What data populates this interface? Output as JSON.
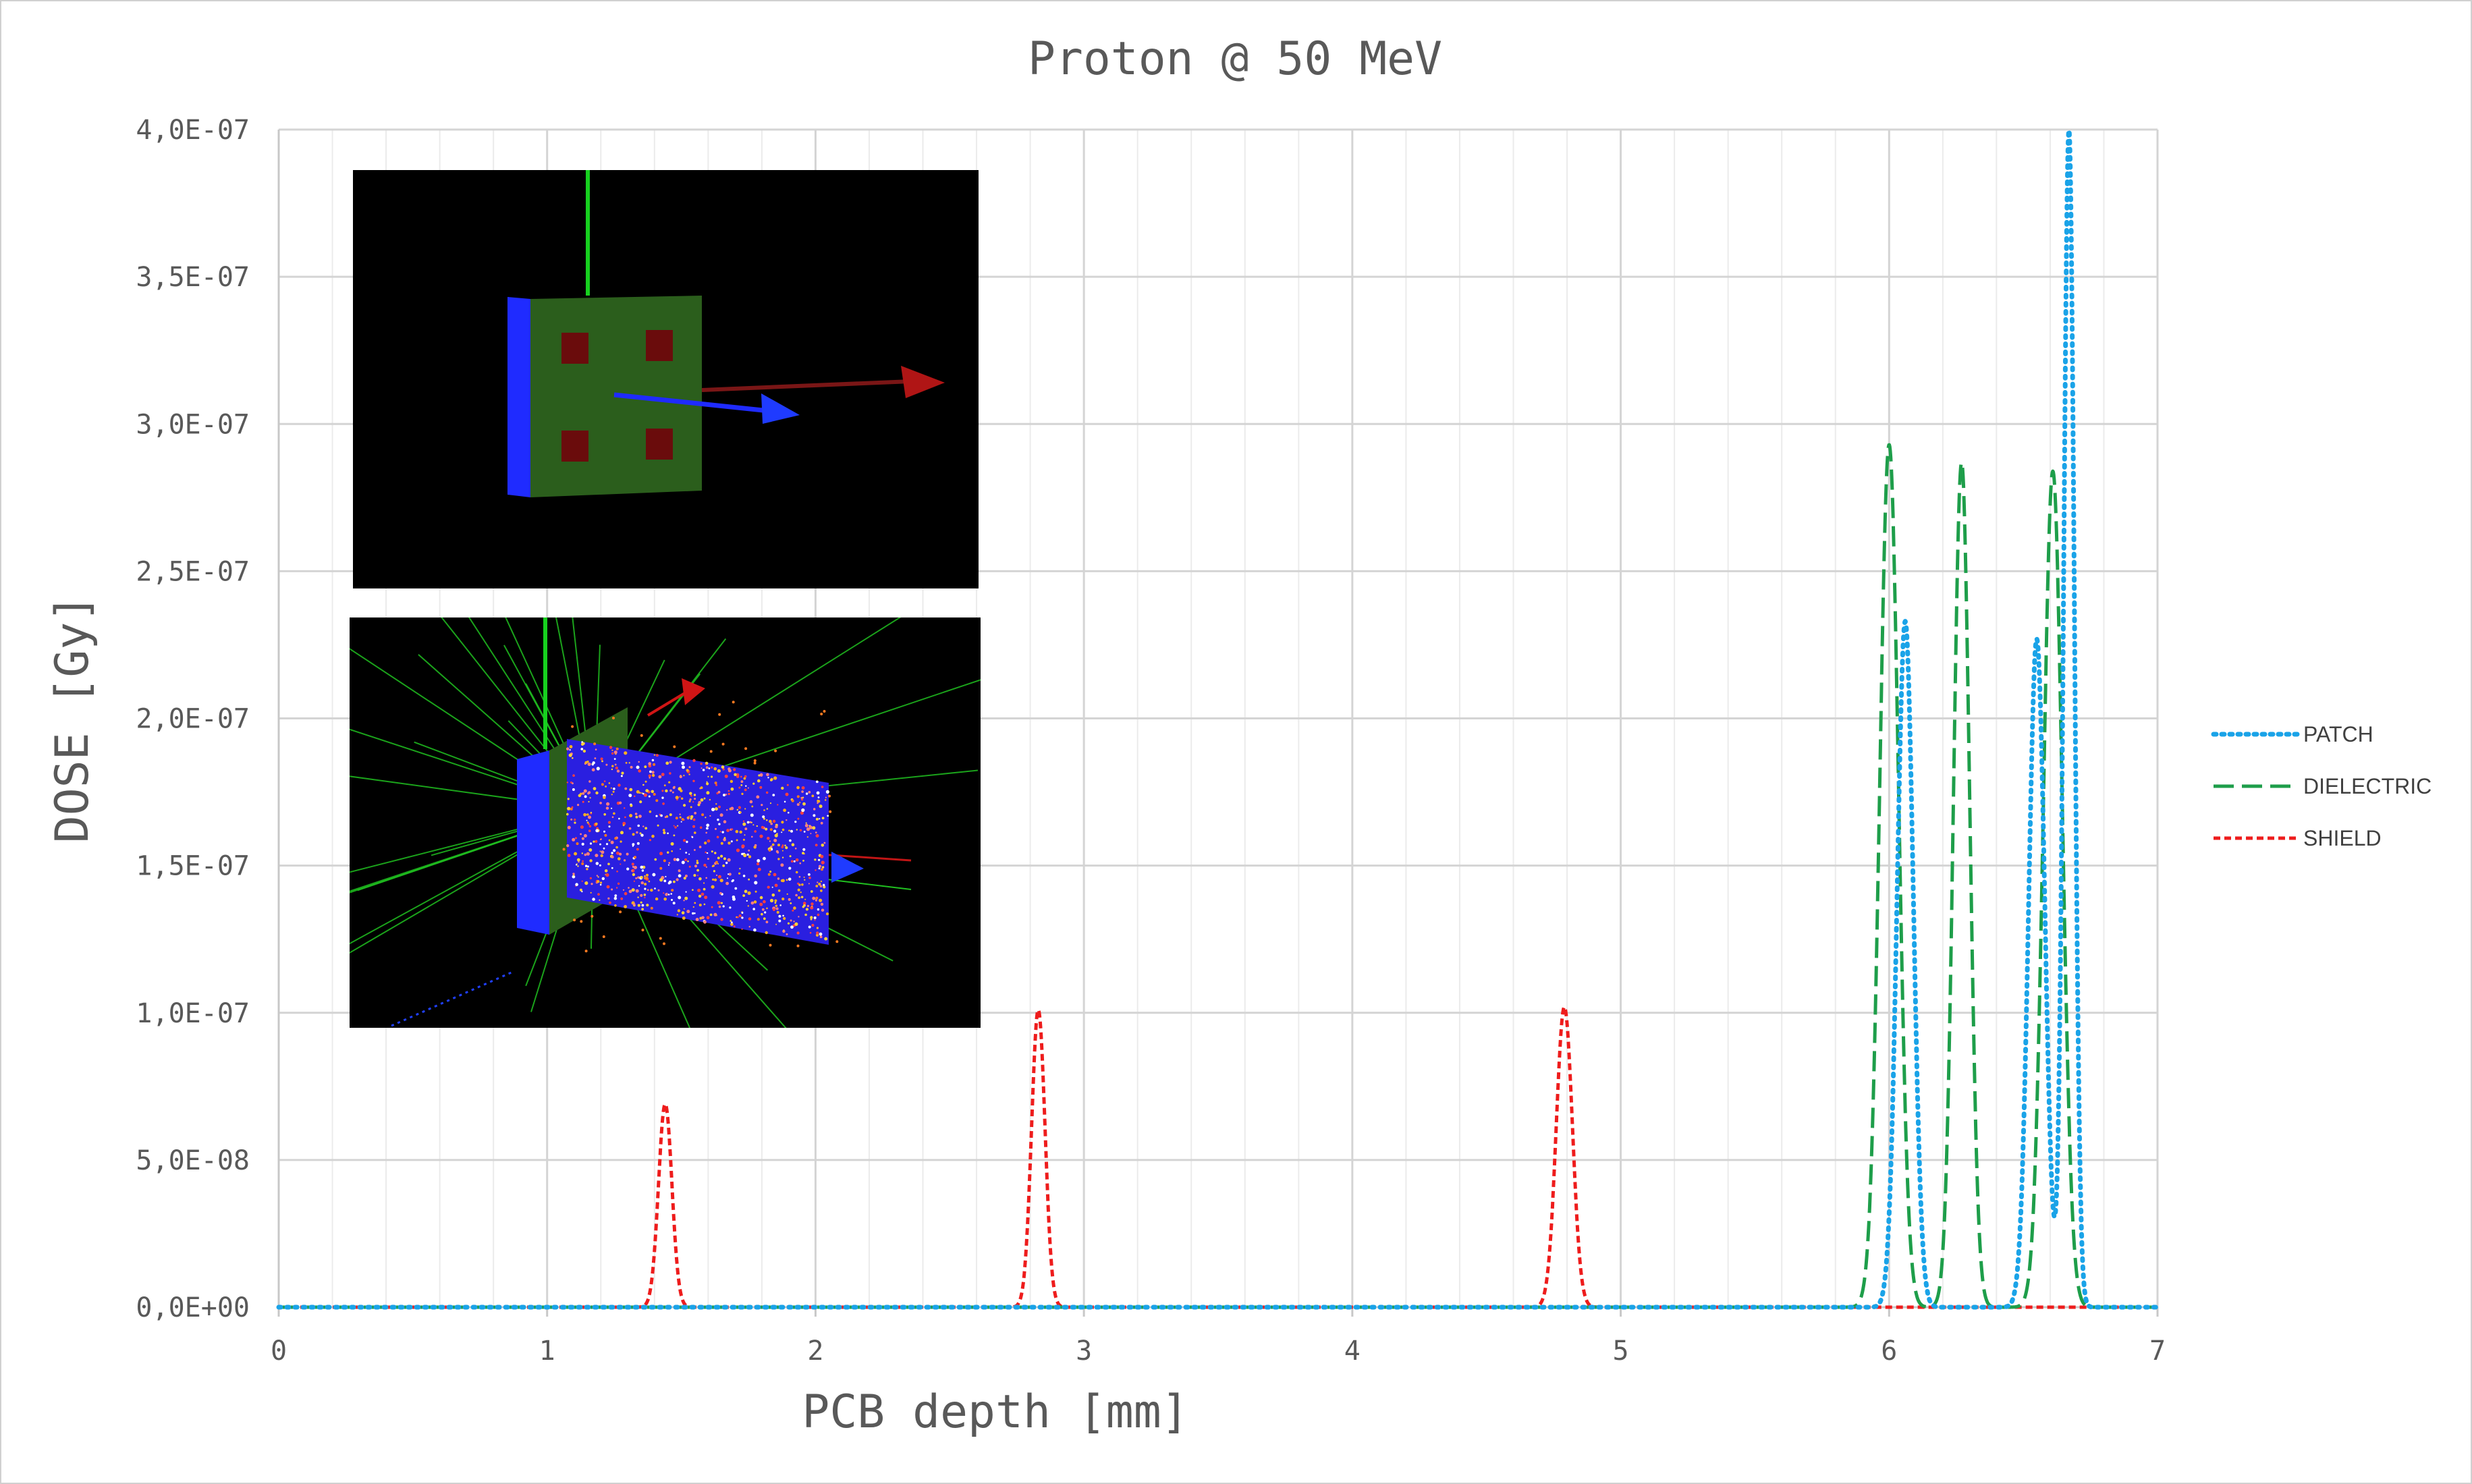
{
  "chart_data": {
    "type": "line",
    "title": "Proton @ 50 MeV",
    "xlabel": "PCB depth [mm]",
    "ylabel": "DOSE [Gy]",
    "xlim": [
      0,
      7
    ],
    "ylim": [
      0,
      4e-07
    ],
    "x_ticks": [
      "0",
      "1",
      "2",
      "3",
      "4",
      "5",
      "6",
      "7"
    ],
    "y_ticks": [
      "0,0E+00",
      "5,0E-08",
      "1,0E-07",
      "1,5E-07",
      "2,0E-07",
      "2,5E-07",
      "3,0E-07",
      "3,5E-07",
      "4,0E-07"
    ],
    "grid": "major and minor",
    "legend_position": "right",
    "series": [
      {
        "name": "PATCH",
        "color": "#1aa3e8",
        "style": "dotted",
        "peaks": [
          {
            "x": 6.06,
            "y": 2.33e-07,
            "width": 0.03
          },
          {
            "x": 6.55,
            "y": 2.27e-07,
            "width": 0.03
          },
          {
            "x": 6.67,
            "y": 4e-07,
            "width": 0.02
          }
        ]
      },
      {
        "name": "DIELECTRIC",
        "color": "#1e9e4a",
        "style": "dashed",
        "peaks": [
          {
            "x": 6.0,
            "y": 2.93e-07,
            "width": 0.035
          },
          {
            "x": 6.27,
            "y": 2.87e-07,
            "width": 0.03
          },
          {
            "x": 6.61,
            "y": 2.84e-07,
            "width": 0.035
          }
        ]
      },
      {
        "name": "SHIELD",
        "color": "#ee1c1c",
        "style": "short-dashed",
        "peaks": [
          {
            "x": 1.44,
            "y": 6.9e-08,
            "width": 0.025
          },
          {
            "x": 2.83,
            "y": 1.01e-07,
            "width": 0.025
          },
          {
            "x": 4.79,
            "y": 1.02e-07,
            "width": 0.03
          }
        ]
      }
    ]
  },
  "insets": [
    {
      "name": "geometry-view",
      "description_icon": "pcb-geometry-render"
    },
    {
      "name": "particle-tracks-view",
      "description_icon": "particle-shower-render"
    }
  ]
}
